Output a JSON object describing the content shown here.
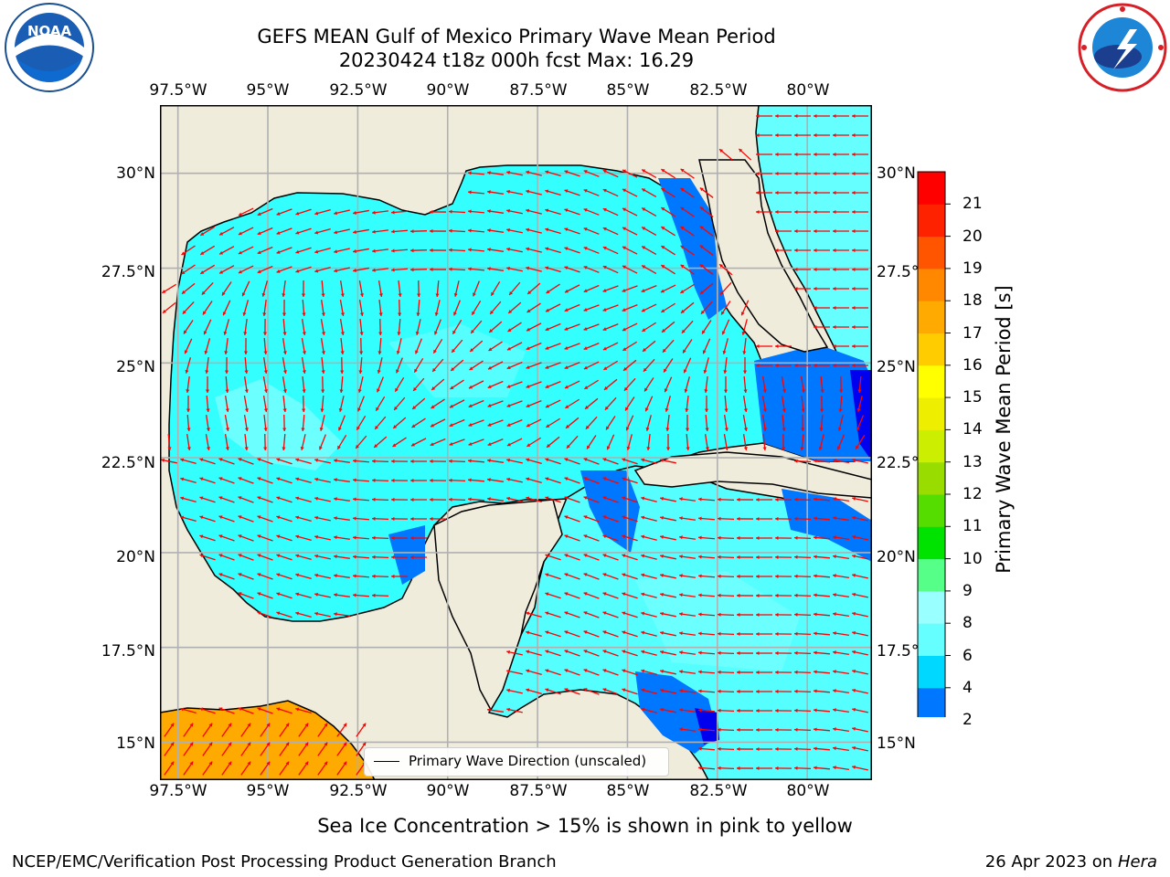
{
  "title": {
    "line1": "GEFS MEAN Gulf of Mexico Primary Wave Mean Period",
    "line2": "20230424 t18z 000h fcst   Max: 16.29"
  },
  "logos": {
    "left": "noaa-logo",
    "right": "national-weather-service-logo"
  },
  "map": {
    "lon_ticks": [
      "97.5°W",
      "95°W",
      "92.5°W",
      "90°W",
      "87.5°W",
      "85°W",
      "82.5°W",
      "80°W"
    ],
    "lat_ticks": [
      "30°N",
      "27.5°N",
      "25°N",
      "22.5°N",
      "20°N",
      "17.5°N",
      "15°N"
    ],
    "extent": {
      "lon": [
        -98,
        -78.2
      ],
      "lat": [
        14,
        31.8
      ]
    },
    "gridlines": true,
    "colors": {
      "land": "#efecdc",
      "coast": "#000000",
      "grid": "#b0b0b0",
      "arrows": "#ff0000"
    },
    "legend": {
      "label": "Primary Wave Direction (unscaled)",
      "placement": "bottom-center"
    }
  },
  "colorbar": {
    "label": "Primary Wave Mean Period [s]",
    "ticks": [
      "2",
      "4",
      "6",
      "8",
      "9",
      "10",
      "11",
      "12",
      "13",
      "14",
      "15",
      "16",
      "17",
      "18",
      "19",
      "20",
      "21"
    ],
    "colors": [
      "#0077ff",
      "#00d8ff",
      "#66ffff",
      "#99ffff",
      "#55ff88",
      "#00e200",
      "#55dd00",
      "#99dd00",
      "#ccee00",
      "#eeee00",
      "#ffff00",
      "#ffcc00",
      "#ffaa00",
      "#ff8800",
      "#ff5500",
      "#ff2200",
      "#ff0000"
    ],
    "extend_color": "#0000ee"
  },
  "footer": {
    "note": "Sea Ice Concentration > 15% is shown in pink to yellow",
    "left": "NCEP/EMC/Verification Post Processing Product Generation Branch",
    "right_date": "26 Apr 2023 on",
    "right_host": "Hera"
  }
}
